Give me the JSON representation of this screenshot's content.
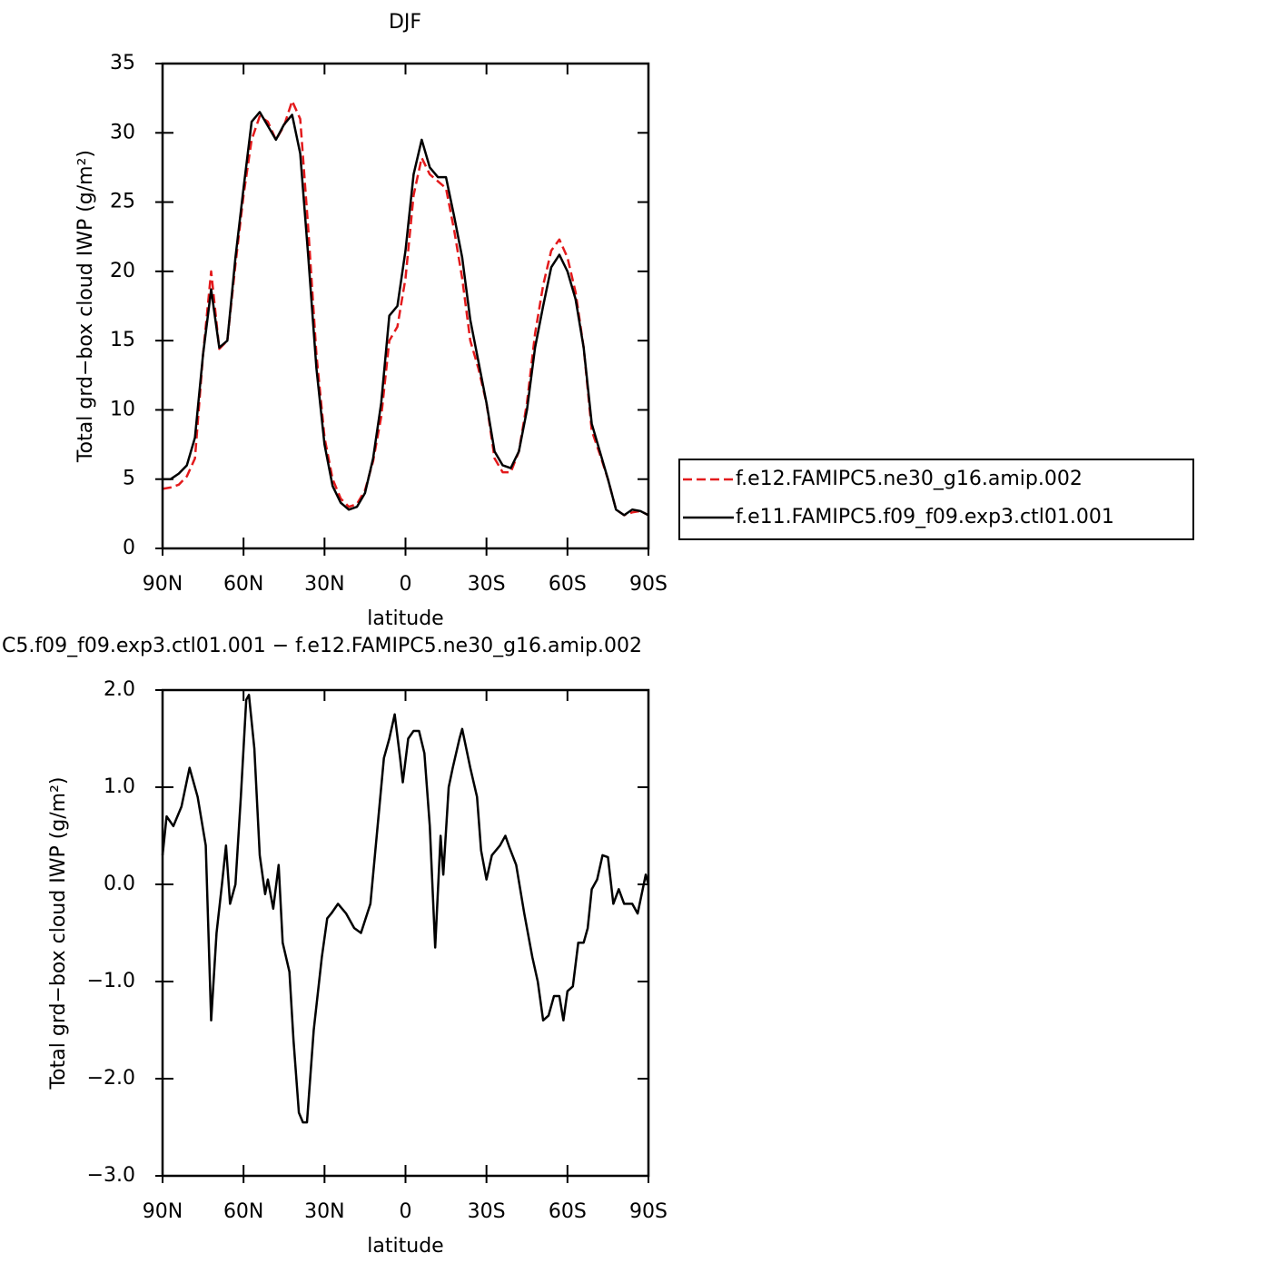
{
  "chart_data": [
    {
      "type": "line",
      "title": "DJF",
      "x_label": "latitude",
      "y_label": "Total grd−box cloud IWP (g/m²)",
      "x": [
        90,
        87,
        84,
        81,
        78,
        75,
        72,
        69,
        66,
        63,
        60,
        57,
        54,
        51,
        48,
        45,
        42,
        39,
        36,
        33,
        30,
        27,
        24,
        21,
        18,
        15,
        12,
        9,
        6,
        3,
        0,
        -3,
        -6,
        -9,
        -12,
        -15,
        -18,
        -21,
        -24,
        -27,
        -30,
        -33,
        -36,
        -39,
        -42,
        -45,
        -48,
        -51,
        -54,
        -57,
        -60,
        -63,
        -66,
        -69,
        -72,
        -75,
        -78,
        -81,
        -84,
        -87,
        -90
      ],
      "series": [
        {
          "name": "f.e12.FAMIPC5.ne30_g16.amip.002",
          "color": "#e31a1c",
          "style": "dashed",
          "values": [
            4.3,
            4.4,
            4.6,
            5.2,
            6.5,
            14,
            20.0,
            14.4,
            15,
            20.5,
            25.5,
            29.5,
            31.2,
            30.8,
            29.5,
            30.5,
            32.3,
            31,
            23,
            14,
            8,
            5,
            3.6,
            3.0,
            3.2,
            4.2,
            6.3,
            9.5,
            15,
            16,
            19.5,
            25.5,
            28.2,
            27,
            26.5,
            26,
            23,
            19.5,
            15,
            13,
            10.5,
            6.5,
            5.5,
            5.5,
            7,
            10.5,
            15.5,
            19,
            21.5,
            22.3,
            21,
            18.5,
            14.5,
            8.5,
            6.8,
            5,
            2.8,
            2.4,
            2.6,
            2.7,
            2.4
          ]
        },
        {
          "name": "f.e11.FAMIPC5.f09_f09.exp3.ctl01.001",
          "color": "#000000",
          "style": "solid",
          "values": [
            5.0,
            5.0,
            5.4,
            6.0,
            8,
            14,
            18.7,
            14.5,
            15,
            21,
            26,
            30.8,
            31.5,
            30.5,
            29.5,
            30.6,
            31.3,
            28.5,
            21,
            13,
            7.5,
            4.5,
            3.3,
            2.8,
            3.0,
            4,
            6.5,
            10.5,
            16.8,
            17.5,
            21.5,
            27,
            29.5,
            27.5,
            26.8,
            26.8,
            24,
            21,
            16.5,
            13.5,
            10.5,
            7,
            6,
            5.8,
            7,
            10,
            14.5,
            17.5,
            20.3,
            21.2,
            20,
            18,
            14.5,
            9,
            7,
            5,
            2.8,
            2.4,
            2.8,
            2.7,
            2.4
          ]
        }
      ],
      "xlim": [
        90,
        -90
      ],
      "xticks": [
        {
          "value": 90,
          "label": "90N"
        },
        {
          "value": 60,
          "label": "60N"
        },
        {
          "value": 30,
          "label": "30N"
        },
        0,
        {
          "value": -30,
          "label": "30S"
        },
        {
          "value": -60,
          "label": "60S"
        },
        {
          "value": -90,
          "label": "90S"
        }
      ],
      "ylim": [
        0,
        35
      ],
      "yticks": [
        0,
        5,
        10,
        15,
        20,
        25,
        30,
        35
      ],
      "legend": "right"
    },
    {
      "type": "line",
      "title": "C5.f09_f09.exp3.ctl01.001 − f.e12.FAMIPC5.ne30_g16.amip.002",
      "x_label": "latitude",
      "y_label": "Total grd−box cloud IWP (g/m²)",
      "x": [
        90,
        88.5,
        86,
        83,
        80,
        77,
        74,
        72,
        70,
        68,
        66.5,
        65,
        63,
        61,
        59,
        58,
        56,
        54,
        52,
        51,
        49,
        47,
        45.5,
        43,
        41.5,
        39.5,
        38,
        36.5,
        34,
        31,
        29,
        27.5,
        25,
        22,
        19,
        16.5,
        13,
        10,
        8,
        6,
        4,
        2,
        1,
        -1,
        -3,
        -5,
        -7,
        -9,
        -11,
        -13,
        -14,
        -16,
        -17.5,
        -20,
        -21,
        -24,
        -26.5,
        -28,
        -30,
        -32,
        -35,
        -37,
        -38.5,
        -41,
        -44,
        -47,
        -49,
        -51,
        -53,
        -55,
        -57,
        -58.5,
        -60,
        -62,
        -64,
        -66,
        -67.5,
        -69,
        -71,
        -73,
        -75,
        -77,
        -79,
        -81,
        -84,
        -86,
        -87.5,
        -89,
        -90
      ],
      "series": [
        {
          "color": "#000000",
          "style": "solid",
          "values": [
            0.3,
            0.7,
            0.6,
            0.8,
            1.2,
            0.9,
            0.4,
            -1.4,
            -0.5,
            0,
            0.4,
            -0.2,
            0.0,
            0.9,
            1.9,
            1.95,
            1.4,
            0.3,
            -0.1,
            0.05,
            -0.25,
            0.2,
            -0.6,
            -0.9,
            -1.6,
            -2.35,
            -2.45,
            -2.45,
            -1.5,
            -0.75,
            -0.35,
            -0.3,
            -0.2,
            -0.3,
            -0.45,
            -0.5,
            -0.2,
            0.7,
            1.3,
            1.5,
            1.75,
            1.3,
            1.05,
            1.5,
            1.58,
            1.58,
            1.35,
            0.6,
            -0.65,
            0.5,
            0.1,
            1.0,
            1.2,
            1.5,
            1.6,
            1.2,
            0.9,
            0.35,
            0.05,
            0.3,
            0.4,
            0.5,
            0.38,
            0.2,
            -0.3,
            -0.75,
            -1.0,
            -1.4,
            -1.35,
            -1.15,
            -1.15,
            -1.4,
            -1.1,
            -1.05,
            -0.6,
            -0.6,
            -0.45,
            -0.05,
            0.05,
            0.3,
            0.28,
            -0.2,
            -0.05,
            -0.2,
            -0.2,
            -0.3,
            -0.1,
            0.1,
            0.0
          ]
        }
      ],
      "xlim": [
        90,
        -90
      ],
      "xticks": [
        {
          "value": 90,
          "label": "90N"
        },
        {
          "value": 60,
          "label": "60N"
        },
        {
          "value": 30,
          "label": "30N"
        },
        0,
        {
          "value": -30,
          "label": "30S"
        },
        {
          "value": -60,
          "label": "60S"
        },
        {
          "value": -90,
          "label": "90S"
        }
      ],
      "ylim": [
        -3,
        2
      ],
      "yticks": [
        {
          "value": -3,
          "label": "−3.0"
        },
        {
          "value": -2,
          "label": "−2.0"
        },
        {
          "value": -1,
          "label": "−1.0"
        },
        {
          "value": 0,
          "label": "0.0"
        },
        {
          "value": 1,
          "label": "1.0"
        },
        {
          "value": 2,
          "label": "2.0"
        }
      ]
    }
  ]
}
